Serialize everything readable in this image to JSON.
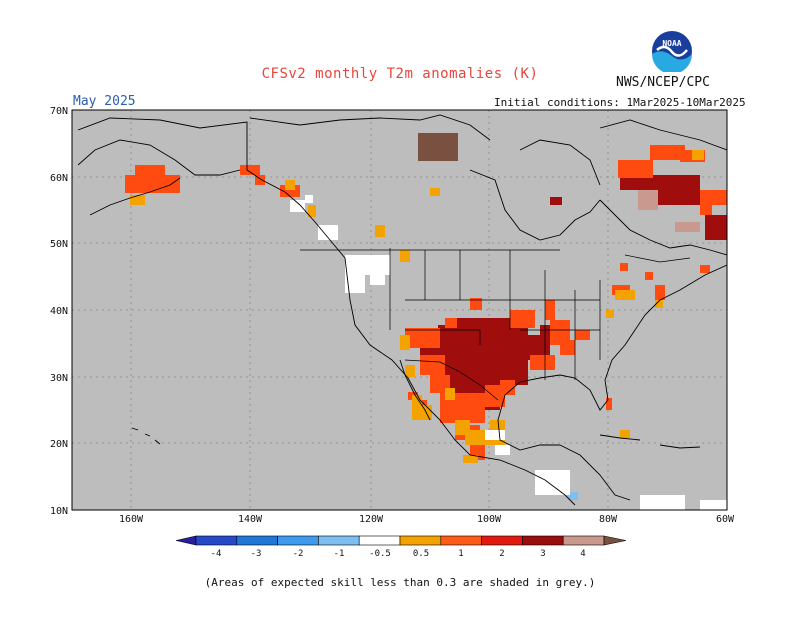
{
  "header": {
    "title": "CFSv2 monthly T2m anomalies (K)",
    "agency": "NWS/NCEP/CPC",
    "logo_text": "NOAA",
    "month": "May 2025",
    "initial_conditions": "Initial conditions: 1Mar2025-10Mar2025"
  },
  "axes": {
    "lat_labels": [
      "70N",
      "60N",
      "50N",
      "40N",
      "30N",
      "20N",
      "10N"
    ],
    "lon_labels": [
      "160W",
      "140W",
      "120W",
      "100W",
      "80W",
      "60W"
    ]
  },
  "colorbar": {
    "labels": [
      "-4",
      "-3",
      "-2",
      "-1",
      "-0.5",
      "0.5",
      "1",
      "2",
      "3",
      "4"
    ],
    "bins": [
      {
        "color": "#2a1d9e"
      },
      {
        "color": "#2549c8"
      },
      {
        "color": "#1f78d8"
      },
      {
        "color": "#3d9aee"
      },
      {
        "color": "#7ebff2"
      },
      {
        "color": "#ffffff"
      },
      {
        "color": "#f4a200"
      },
      {
        "color": "#ff5a16"
      },
      {
        "color": "#e01a0e"
      },
      {
        "color": "#9b0c0c"
      },
      {
        "color": "#c9998f"
      },
      {
        "color": "#7a5040"
      }
    ]
  },
  "footnote": "(Areas of expected skill less than 0.3 are shaded in grey.)",
  "colors": {
    "no_skill_grey": "#bdbdbd",
    "anom_0_5_1": "#f4a200",
    "anom_1_2": "#ff4a10",
    "anom_2_3": "#a00d0d",
    "anom_3_4": "#c9998f",
    "anom_gt4": "#7a5040",
    "anom_neg_0_5_1": "#7ebff2"
  }
}
